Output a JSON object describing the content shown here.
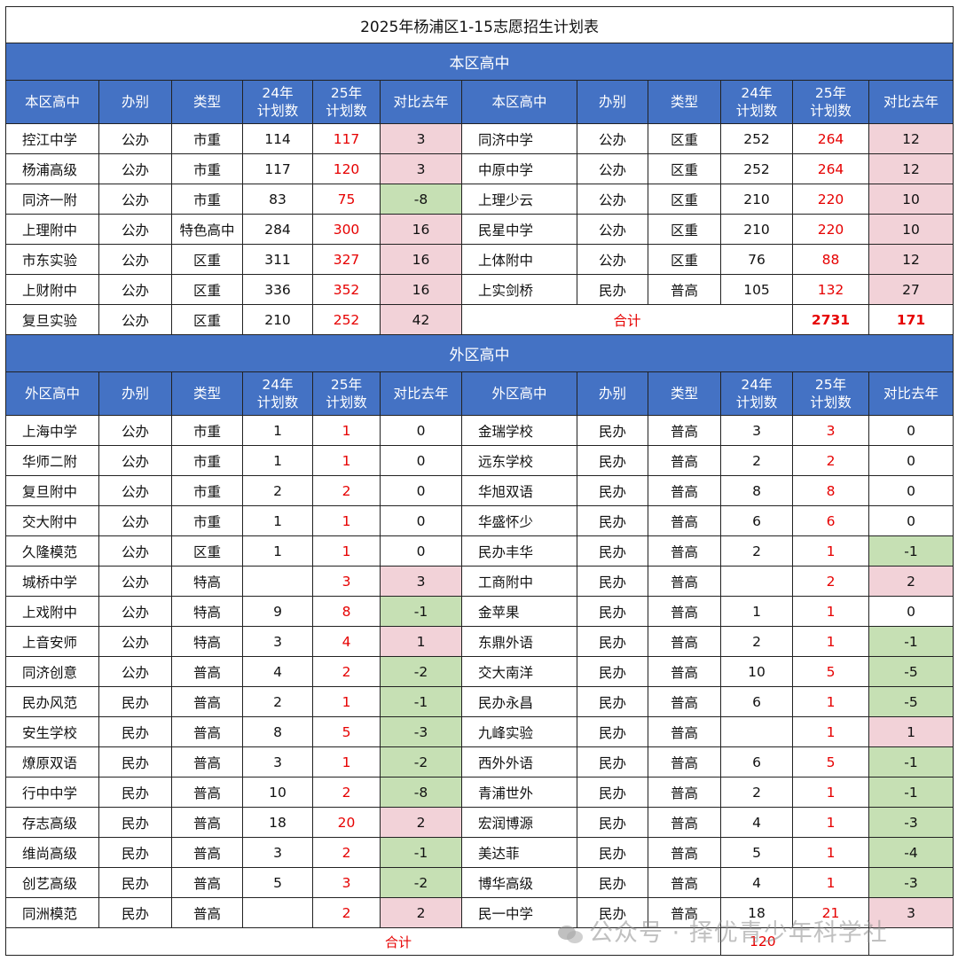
{
  "title": "2025年杨浦区1-15志愿招生计划表",
  "colors": {
    "header_bg": "#4472c4",
    "increase_bg": "#f2d2d8",
    "decrease_bg": "#c6e0b4",
    "plan25_text": "#e60000"
  },
  "local": {
    "section_title": "本区高中",
    "headers": [
      "本区高中",
      "办别",
      "类型",
      "24年\n计划数",
      "25年\n计划数",
      "对比去年",
      "本区高中",
      "办别",
      "类型",
      "24年\n计划数",
      "25年\n计划数",
      "对比去年"
    ],
    "rows": [
      {
        "left": [
          "控江中学",
          "公办",
          "市重",
          "114",
          "117",
          "3"
        ],
        "right": [
          "同济中学",
          "公办",
          "区重",
          "252",
          "264",
          "12"
        ]
      },
      {
        "left": [
          "杨浦高级",
          "公办",
          "市重",
          "117",
          "120",
          "3"
        ],
        "right": [
          "中原中学",
          "公办",
          "区重",
          "252",
          "264",
          "12"
        ]
      },
      {
        "left": [
          "同济一附",
          "公办",
          "市重",
          "83",
          "75",
          "-8"
        ],
        "right": [
          "上理少云",
          "公办",
          "区重",
          "210",
          "220",
          "10"
        ]
      },
      {
        "left": [
          "上理附中",
          "公办",
          "特色高中",
          "284",
          "300",
          "16"
        ],
        "right": [
          "民星中学",
          "公办",
          "区重",
          "210",
          "220",
          "10"
        ]
      },
      {
        "left": [
          "市东实验",
          "公办",
          "区重",
          "311",
          "327",
          "16"
        ],
        "right": [
          "上体附中",
          "公办",
          "区重",
          "76",
          "88",
          "12"
        ]
      },
      {
        "left": [
          "上财附中",
          "公办",
          "区重",
          "336",
          "352",
          "16"
        ],
        "right": [
          "上实剑桥",
          "民办",
          "普高",
          "105",
          "132",
          "27"
        ]
      }
    ],
    "last_row": [
      "复旦实验",
      "公办",
      "区重",
      "210",
      "252",
      "42"
    ],
    "total_label": "合计",
    "total_plan": "2731",
    "total_diff": "171"
  },
  "external": {
    "section_title": "外区高中",
    "headers": [
      "外区高中",
      "办别",
      "类型",
      "24年\n计划数",
      "25年\n计划数",
      "对比去年",
      "外区高中",
      "办别",
      "类型",
      "24年\n计划数",
      "25年\n计划数",
      "对比去年"
    ],
    "rows": [
      {
        "left": [
          "上海中学",
          "公办",
          "市重",
          "1",
          "1",
          "0"
        ],
        "right": [
          "金瑞学校",
          "民办",
          "普高",
          "3",
          "3",
          "0"
        ]
      },
      {
        "left": [
          "华师二附",
          "公办",
          "市重",
          "1",
          "1",
          "0"
        ],
        "right": [
          "远东学校",
          "民办",
          "普高",
          "2",
          "2",
          "0"
        ]
      },
      {
        "left": [
          "复旦附中",
          "公办",
          "市重",
          "2",
          "2",
          "0"
        ],
        "right": [
          "华旭双语",
          "民办",
          "普高",
          "8",
          "8",
          "0"
        ]
      },
      {
        "left": [
          "交大附中",
          "公办",
          "市重",
          "1",
          "1",
          "0"
        ],
        "right": [
          "华盛怀少",
          "民办",
          "普高",
          "6",
          "6",
          "0"
        ]
      },
      {
        "left": [
          "久隆模范",
          "公办",
          "区重",
          "1",
          "1",
          "0"
        ],
        "right": [
          "民办丰华",
          "民办",
          "普高",
          "2",
          "1",
          "-1"
        ]
      },
      {
        "left": [
          "城桥中学",
          "公办",
          "特高",
          "",
          "3",
          "3"
        ],
        "right": [
          "工商附中",
          "民办",
          "普高",
          "",
          "2",
          "2"
        ]
      },
      {
        "left": [
          "上戏附中",
          "公办",
          "特高",
          "9",
          "8",
          "-1"
        ],
        "right": [
          "金苹果",
          "民办",
          "普高",
          "1",
          "1",
          "0"
        ]
      },
      {
        "left": [
          "上音安师",
          "公办",
          "特高",
          "3",
          "4",
          "1"
        ],
        "right": [
          "东鼎外语",
          "民办",
          "普高",
          "2",
          "1",
          "-1"
        ]
      },
      {
        "left": [
          "同济创意",
          "公办",
          "普高",
          "4",
          "2",
          "-2"
        ],
        "right": [
          "交大南洋",
          "民办",
          "普高",
          "10",
          "5",
          "-5"
        ]
      },
      {
        "left": [
          "民办风范",
          "民办",
          "普高",
          "2",
          "1",
          "-1"
        ],
        "right": [
          "民办永昌",
          "民办",
          "普高",
          "6",
          "1",
          "-5"
        ]
      },
      {
        "left": [
          "安生学校",
          "民办",
          "普高",
          "8",
          "5",
          "-3"
        ],
        "right": [
          "九峰实验",
          "民办",
          "普高",
          "",
          "1",
          "1"
        ]
      },
      {
        "left": [
          "燎原双语",
          "民办",
          "普高",
          "3",
          "1",
          "-2"
        ],
        "right": [
          "西外外语",
          "民办",
          "普高",
          "6",
          "5",
          "-1"
        ]
      },
      {
        "left": [
          "行中中学",
          "民办",
          "普高",
          "10",
          "2",
          "-8"
        ],
        "right": [
          "青浦世外",
          "民办",
          "普高",
          "2",
          "1",
          "-1"
        ]
      },
      {
        "left": [
          "存志高级",
          "民办",
          "普高",
          "18",
          "20",
          "2"
        ],
        "right": [
          "宏润博源",
          "民办",
          "普高",
          "4",
          "1",
          "-3"
        ]
      },
      {
        "left": [
          "维尚高级",
          "民办",
          "普高",
          "3",
          "2",
          "-1"
        ],
        "right": [
          "美达菲",
          "民办",
          "普高",
          "5",
          "1",
          "-4"
        ]
      },
      {
        "left": [
          "创艺高级",
          "民办",
          "普高",
          "5",
          "3",
          "-2"
        ],
        "right": [
          "博华高级",
          "民办",
          "普高",
          "4",
          "1",
          "-3"
        ]
      },
      {
        "left": [
          "同洲模范",
          "民办",
          "普高",
          "",
          "2",
          "2"
        ],
        "right": [
          "民一中学",
          "民办",
          "普高",
          "18",
          "21",
          "3"
        ]
      }
    ],
    "total_label": "合计",
    "total_plan": "120"
  },
  "watermark": "公众号 · 择优青少年科学社"
}
